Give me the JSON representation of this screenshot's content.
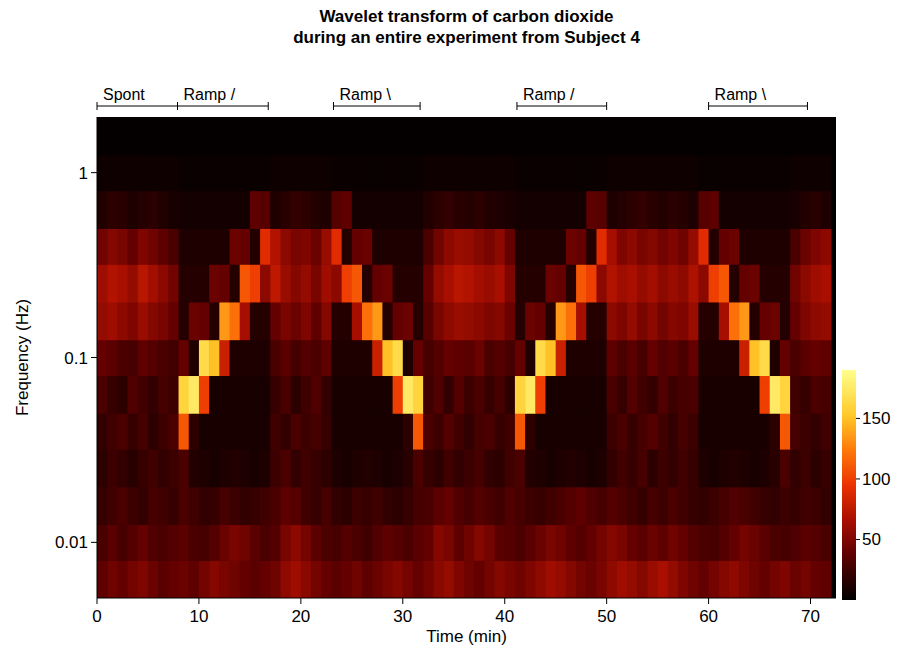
{
  "chart_data": {
    "type": "heatmap",
    "title": [
      "Wavelet transform of carbon dioxide",
      "during an entire experiment from Subject 4"
    ],
    "x_label": "Time (min)",
    "y_label": "Frequency (Hz)",
    "log": "y",
    "xlim": [
      0,
      72.5
    ],
    "ylim": [
      0.005,
      2
    ],
    "xticks": [
      0,
      10,
      20,
      30,
      40,
      50,
      60,
      70
    ],
    "yticks": [
      0.01,
      0.1,
      1
    ],
    "phases": [
      {
        "label": "Spont",
        "start": 0,
        "end": 7.9
      },
      {
        "label": "Ramp /",
        "start": 7.9,
        "end": 16.8
      },
      {
        "label": "Ramp \\",
        "start": 23.2,
        "end": 31.7
      },
      {
        "label": "Ramp /",
        "start": 41.2,
        "end": 50
      },
      {
        "label": "Ramp \\",
        "start": 60,
        "end": 69.7
      }
    ],
    "x_bins": [
      0,
      1,
      2,
      3,
      4,
      5,
      6,
      7,
      8,
      9,
      10,
      11,
      12,
      13,
      14,
      15,
      16,
      17,
      18,
      19,
      20,
      21,
      22,
      23,
      24,
      25,
      26,
      27,
      28,
      29,
      30,
      31,
      32,
      33,
      34,
      35,
      36,
      37,
      38,
      39,
      40,
      41,
      42,
      43,
      44,
      45,
      46,
      47,
      48,
      49,
      50,
      51,
      52,
      53,
      54,
      55,
      56,
      57,
      58,
      59,
      60,
      61,
      62,
      63,
      64,
      65,
      66,
      67,
      68,
      69,
      70,
      71,
      72
    ],
    "y_bins": [
      0.005,
      0.008,
      0.0125,
      0.02,
      0.032,
      0.05,
      0.08,
      0.125,
      0.2,
      0.32,
      0.5,
      0.8,
      1.25,
      2
    ],
    "cells": [
      [
        38,
        44,
        40,
        46,
        50,
        42,
        36,
        40,
        42,
        38,
        46,
        52,
        48,
        44,
        40,
        36,
        40,
        44,
        56,
        62,
        54,
        46,
        40,
        36,
        40,
        44,
        38,
        42,
        48,
        52,
        46,
        40,
        46,
        54,
        58,
        50,
        44,
        40,
        46,
        52,
        48,
        44,
        50,
        56,
        62,
        58,
        52,
        46,
        42,
        48,
        56,
        62,
        58,
        52,
        60,
        66,
        58,
        50,
        44,
        40,
        46,
        52,
        56,
        50,
        44,
        40,
        46,
        50,
        42,
        46,
        40,
        38
      ],
      [
        30,
        36,
        28,
        34,
        40,
        32,
        30,
        34,
        36,
        30,
        28,
        34,
        42,
        48,
        44,
        36,
        30,
        34,
        48,
        55,
        46,
        36,
        30,
        28,
        34,
        30,
        26,
        32,
        38,
        34,
        30,
        36,
        40,
        52,
        48,
        38,
        44,
        52,
        46,
        36,
        34,
        30,
        36,
        42,
        48,
        44,
        38,
        34,
        40,
        46,
        52,
        48,
        40,
        36,
        42,
        38,
        44,
        40,
        34,
        30,
        28,
        34,
        40,
        46,
        42,
        36,
        30,
        28,
        32,
        36,
        34,
        30
      ],
      [
        22,
        26,
        30,
        24,
        20,
        28,
        26,
        22,
        30,
        25,
        20,
        22,
        28,
        24,
        20,
        22,
        26,
        30,
        38,
        34,
        26,
        22,
        28,
        20,
        18,
        24,
        22,
        26,
        20,
        18,
        22,
        28,
        30,
        36,
        40,
        32,
        28,
        34,
        30,
        26,
        32,
        28,
        24,
        22,
        26,
        30,
        34,
        38,
        32,
        28,
        34,
        30,
        26,
        22,
        28,
        24,
        30,
        26,
        22,
        20,
        24,
        28,
        32,
        30,
        26,
        22,
        20,
        24,
        22,
        26,
        24,
        20
      ],
      [
        18,
        24,
        20,
        16,
        22,
        26,
        20,
        24,
        30,
        14,
        12,
        10,
        12,
        14,
        12,
        10,
        12,
        24,
        30,
        20,
        26,
        22,
        18,
        12,
        10,
        12,
        14,
        12,
        10,
        12,
        16,
        30,
        22,
        18,
        26,
        20,
        24,
        28,
        20,
        18,
        26,
        30,
        14,
        12,
        10,
        12,
        14,
        12,
        10,
        12,
        20,
        26,
        22,
        28,
        18,
        24,
        20,
        26,
        22,
        12,
        10,
        12,
        14,
        12,
        10,
        12,
        16,
        30,
        20,
        24,
        18,
        22
      ],
      [
        20,
        26,
        30,
        22,
        28,
        18,
        24,
        30,
        110,
        18,
        10,
        10,
        10,
        10,
        10,
        10,
        10,
        26,
        20,
        30,
        24,
        28,
        22,
        10,
        10,
        10,
        10,
        10,
        10,
        10,
        18,
        110,
        30,
        24,
        34,
        26,
        20,
        28,
        30,
        22,
        26,
        110,
        18,
        10,
        10,
        10,
        10,
        10,
        10,
        10,
        24,
        30,
        22,
        28,
        34,
        26,
        20,
        28,
        24,
        10,
        10,
        10,
        10,
        10,
        10,
        10,
        18,
        110,
        28,
        24,
        20,
        26
      ],
      [
        30,
        22,
        18,
        32,
        26,
        20,
        28,
        24,
        160,
        175,
        100,
        10,
        10,
        10,
        10,
        10,
        10,
        22,
        30,
        18,
        26,
        32,
        20,
        10,
        10,
        10,
        10,
        10,
        10,
        100,
        175,
        160,
        26,
        32,
        20,
        34,
        24,
        30,
        22,
        28,
        18,
        160,
        175,
        100,
        10,
        10,
        10,
        10,
        10,
        10,
        30,
        22,
        34,
        26,
        20,
        32,
        24,
        28,
        30,
        10,
        10,
        10,
        10,
        10,
        10,
        100,
        175,
        160,
        26,
        22,
        30,
        28
      ],
      [
        40,
        36,
        30,
        28,
        38,
        34,
        30,
        26,
        40,
        12,
        165,
        150,
        80,
        12,
        12,
        12,
        12,
        30,
        36,
        28,
        34,
        30,
        38,
        12,
        12,
        12,
        12,
        80,
        150,
        165,
        12,
        40,
        28,
        34,
        40,
        38,
        36,
        42,
        30,
        34,
        28,
        40,
        12,
        165,
        150,
        80,
        12,
        12,
        12,
        12,
        38,
        30,
        36,
        28,
        40,
        32,
        36,
        30,
        40,
        12,
        12,
        12,
        12,
        80,
        150,
        165,
        12,
        40,
        30,
        36,
        40,
        38
      ],
      [
        58,
        62,
        55,
        50,
        60,
        52,
        48,
        40,
        15,
        42,
        40,
        15,
        135,
        120,
        65,
        15,
        15,
        40,
        48,
        42,
        50,
        38,
        52,
        15,
        15,
        65,
        120,
        135,
        15,
        40,
        42,
        15,
        35,
        48,
        56,
        60,
        58,
        55,
        50,
        52,
        42,
        15,
        42,
        40,
        15,
        135,
        120,
        65,
        15,
        15,
        55,
        50,
        58,
        48,
        55,
        46,
        52,
        50,
        60,
        15,
        15,
        65,
        120,
        135,
        15,
        40,
        42,
        15,
        40,
        50,
        56,
        58
      ],
      [
        62,
        70,
        66,
        58,
        72,
        64,
        55,
        45,
        15,
        15,
        15,
        42,
        40,
        15,
        110,
        100,
        55,
        75,
        60,
        52,
        58,
        48,
        62,
        55,
        100,
        110,
        15,
        40,
        42,
        15,
        15,
        15,
        40,
        58,
        66,
        72,
        70,
        64,
        60,
        66,
        50,
        15,
        15,
        15,
        42,
        40,
        15,
        110,
        100,
        55,
        70,
        62,
        66,
        58,
        64,
        55,
        60,
        56,
        68,
        55,
        100,
        110,
        15,
        40,
        42,
        15,
        15,
        15,
        45,
        55,
        62,
        66
      ],
      [
        45,
        52,
        48,
        40,
        50,
        44,
        38,
        30,
        12,
        12,
        12,
        12,
        12,
        42,
        40,
        14,
        90,
        70,
        55,
        48,
        50,
        42,
        60,
        90,
        14,
        40,
        42,
        12,
        12,
        12,
        12,
        12,
        30,
        45,
        55,
        60,
        58,
        52,
        48,
        55,
        40,
        12,
        12,
        12,
        12,
        12,
        42,
        40,
        14,
        90,
        65,
        50,
        55,
        48,
        52,
        45,
        50,
        44,
        58,
        90,
        14,
        40,
        42,
        12,
        12,
        12,
        12,
        12,
        30,
        42,
        50,
        55
      ],
      [
        14,
        18,
        16,
        12,
        15,
        17,
        13,
        10,
        8,
        8,
        8,
        8,
        8,
        8,
        8,
        38,
        35,
        12,
        16,
        20,
        18,
        14,
        12,
        35,
        38,
        8,
        8,
        8,
        8,
        8,
        8,
        8,
        14,
        18,
        20,
        16,
        15,
        18,
        14,
        12,
        10,
        8,
        8,
        8,
        8,
        8,
        8,
        8,
        38,
        35,
        12,
        15,
        18,
        20,
        16,
        14,
        17,
        15,
        12,
        35,
        38,
        8,
        8,
        8,
        8,
        8,
        8,
        8,
        10,
        14,
        16,
        12
      ],
      [
        6,
        6,
        6,
        6,
        6,
        6,
        6,
        6,
        4,
        4,
        4,
        4,
        4,
        4,
        4,
        4,
        4,
        6,
        6,
        6,
        6,
        6,
        6,
        4,
        4,
        4,
        4,
        4,
        4,
        4,
        4,
        4,
        6,
        6,
        6,
        6,
        6,
        6,
        6,
        6,
        6,
        4,
        4,
        4,
        4,
        4,
        4,
        4,
        4,
        4,
        6,
        6,
        6,
        6,
        6,
        6,
        6,
        6,
        6,
        4,
        4,
        4,
        4,
        4,
        4,
        4,
        4,
        4,
        6,
        6,
        6,
        6
      ],
      [
        2,
        2,
        2,
        2,
        2,
        2,
        2,
        2,
        2,
        2,
        2,
        2,
        2,
        2,
        2,
        2,
        2,
        2,
        2,
        2,
        2,
        2,
        2,
        2,
        2,
        2,
        2,
        2,
        2,
        2,
        2,
        2,
        2,
        2,
        2,
        2,
        2,
        2,
        2,
        2,
        2,
        2,
        2,
        2,
        2,
        2,
        2,
        2,
        2,
        2,
        2,
        2,
        2,
        2,
        2,
        2,
        2,
        2,
        2,
        2,
        2,
        2,
        2,
        2,
        2,
        2,
        2,
        2,
        2,
        2,
        2,
        2
      ]
    ],
    "colorbar": {
      "lim": [
        0,
        190
      ],
      "ticks": [
        50,
        100,
        150
      ]
    }
  }
}
